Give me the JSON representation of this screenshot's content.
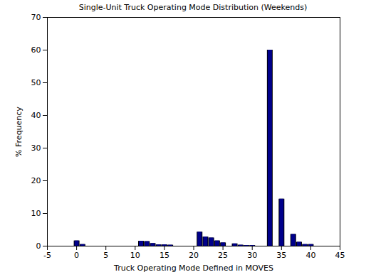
{
  "chart_data": {
    "type": "bar",
    "title": "Single-Unit Truck Operating Mode Distribution (Weekends)",
    "x_label": "Truck Operating Mode Defined in MOVES",
    "y_label": "% Frequency",
    "x": [
      0,
      1,
      11,
      12,
      13,
      14,
      15,
      16,
      21,
      22,
      23,
      24,
      25,
      27,
      28,
      29,
      30,
      33,
      35,
      37,
      38,
      39,
      40
    ],
    "values": [
      1.6,
      0.5,
      1.5,
      1.4,
      0.8,
      0.4,
      0.4,
      0.3,
      4.3,
      2.8,
      2.5,
      1.6,
      1.0,
      0.7,
      0.3,
      0.2,
      0.2,
      60,
      14.4,
      3.6,
      1.2,
      0.5,
      0.5
    ],
    "color": "#00008b",
    "xlim": [
      -5,
      45
    ],
    "xticks": [
      -5,
      0,
      5,
      10,
      15,
      20,
      25,
      30,
      35,
      40,
      45
    ],
    "ylim": [
      0,
      70
    ],
    "yticks": [
      0,
      10,
      20,
      30,
      40,
      50,
      60,
      70
    ]
  }
}
